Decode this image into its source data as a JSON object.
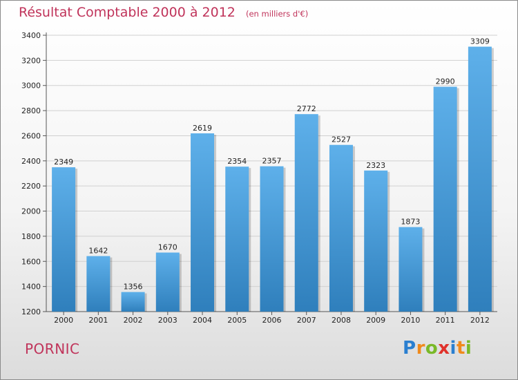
{
  "chart_data": {
    "type": "bar",
    "title": "Résultat Comptable 2000 à 2012",
    "subtitle": "(en milliers d'€)",
    "categories": [
      "2000",
      "2001",
      "2002",
      "2003",
      "2004",
      "2005",
      "2006",
      "2007",
      "2008",
      "2009",
      "2010",
      "2011",
      "2012"
    ],
    "values": [
      2349,
      1642,
      1356,
      1670,
      2619,
      2354,
      2357,
      2772,
      2527,
      2323,
      1873,
      2990,
      3309
    ],
    "xlabel": "",
    "ylabel": "",
    "ylim": [
      1200,
      3400
    ],
    "yticks": [
      1200,
      1400,
      1600,
      1800,
      2000,
      2200,
      2400,
      2600,
      2800,
      3000,
      3200,
      3400
    ],
    "grid": true,
    "colors": {
      "bar_top": "#5eb0ea",
      "bar_bottom": "#2f7fbc",
      "title": "#c0335a",
      "grid": "#d0d0d0"
    }
  },
  "footer": {
    "town": "PORNIC",
    "brand": {
      "letters": [
        "P",
        "r",
        "o",
        "x",
        "i",
        "t",
        "i"
      ],
      "colors": [
        "#2a7fd0",
        "#f08a1c",
        "#7ab928",
        "#e0322b",
        "#2a7fd0",
        "#f08a1c",
        "#7ab928"
      ]
    }
  }
}
